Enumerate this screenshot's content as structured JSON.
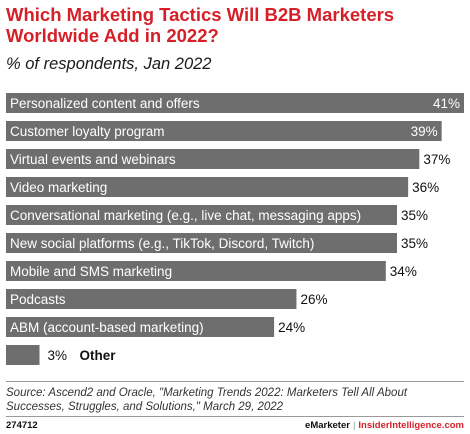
{
  "title": "Which Marketing Tactics Will B2B Marketers Worldwide Add in 2022?",
  "subtitle": "% of respondents, Jan 2022",
  "source": "Source: Ascend2 and Oracle, \"Marketing Trends 2022: Marketers Tell All About Successes, Struggles, and Solutions,\" March 29, 2022",
  "footer": {
    "chart_id": "274712",
    "brand_left": "eMarketer",
    "separator": "|",
    "brand_right": "InsiderIntelligence.com"
  },
  "colors": {
    "bar": "#6e6e6e",
    "title": "#d71f28"
  },
  "chart_data": {
    "type": "bar",
    "orientation": "horizontal",
    "categories": [
      "Personalized content and offers",
      "Customer loyalty program",
      "Virtual events and webinars",
      "Video marketing",
      "Conversational marketing (e.g., live chat, messaging apps)",
      "New social platforms (e.g., TikTok, Discord, Twitch)",
      "Mobile and SMS marketing",
      "Podcasts",
      "ABM (account-based marketing)",
      "Other"
    ],
    "values": [
      41,
      39,
      37,
      36,
      35,
      35,
      34,
      26,
      24,
      3
    ],
    "value_labels": [
      "41%",
      "39%",
      "37%",
      "36%",
      "35%",
      "35%",
      "34%",
      "26%",
      "24%",
      "3%"
    ],
    "xlim": [
      0,
      41
    ],
    "grid": false,
    "legend": "none"
  }
}
